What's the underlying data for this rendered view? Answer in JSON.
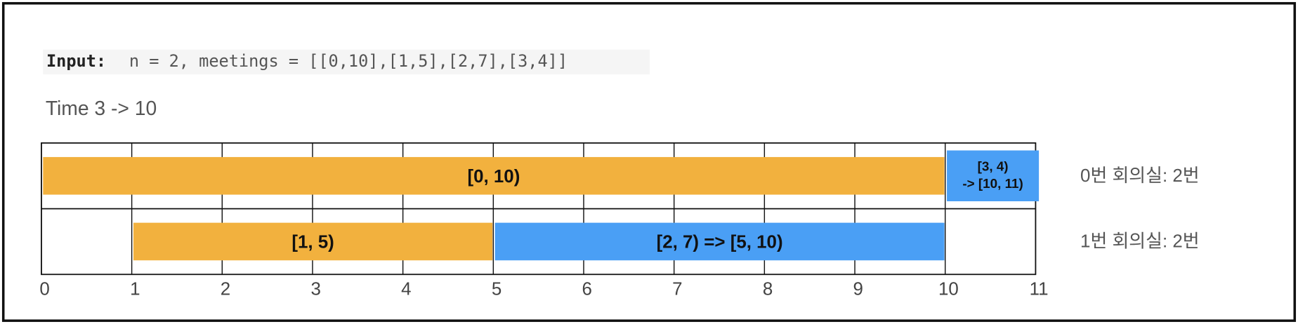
{
  "input": {
    "label": "Input:",
    "value": "n = 2, meetings = [[0,10],[1,5],[2,7],[3,4]]"
  },
  "time_label": "Time 3 -> 10",
  "axis": {
    "ticks": [
      0,
      1,
      2,
      3,
      4,
      5,
      6,
      7,
      8,
      9,
      10,
      11
    ]
  },
  "rows": [
    {
      "label": "0번 회의실: 2번",
      "bars": [
        {
          "label": "[0, 10)",
          "start": 0,
          "end": 10,
          "color": "#f2b13e"
        },
        {
          "label": [
            "[3, 4)",
            "-> [10, 11)"
          ],
          "start": 10,
          "end": 11,
          "color": "#4a9ff5"
        }
      ]
    },
    {
      "label": "1번 회의실: 2번",
      "bars": [
        {
          "label": "[1, 5)",
          "start": 1,
          "end": 5,
          "color": "#f2b13e"
        },
        {
          "label": "[2, 7) => [5, 10)",
          "start": 5,
          "end": 10,
          "color": "#4a9ff5"
        }
      ]
    }
  ]
}
